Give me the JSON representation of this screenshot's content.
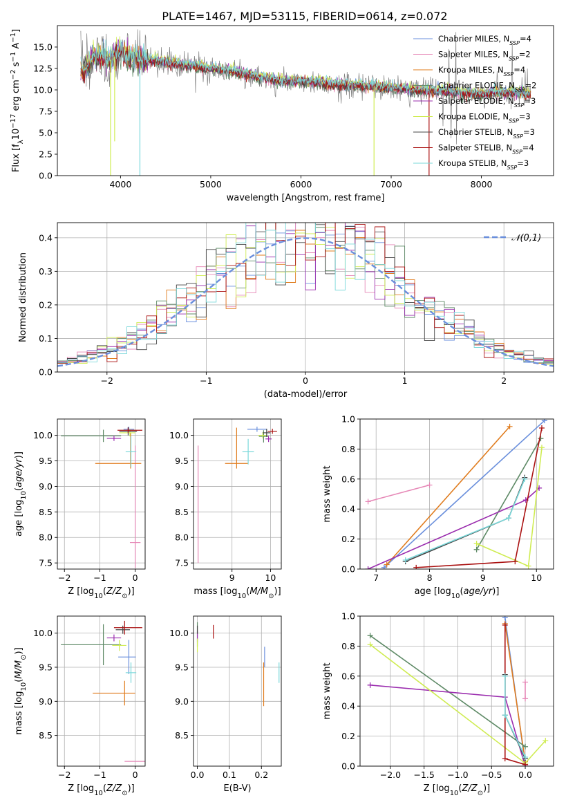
{
  "title": "PLATE=1467, MJD=53115, FIBERID=0614, z=0.072",
  "colors": {
    "chabrier_miles": "#6a8fdc",
    "salpeter_miles": "#e688b7",
    "kroupa_miles": "#e07c1e",
    "chabrier_elodie": "#5e8a66",
    "salpeter_elodie": "#9a2cae",
    "kroupa_elodie": "#cfec52",
    "chabrier_stelib": "#444444",
    "salpeter_stelib": "#aa1111",
    "kroupa_stelib": "#7ad8da",
    "normal": "#6a8fdc"
  },
  "chart_data": [
    {
      "id": "spectrum",
      "type": "line",
      "xlabel": "wavelength [Angstrom, rest frame]",
      "ylabel": "Flux [f_λ 10^-17 erg cm^-2 s^-1 A^-1]",
      "xlim": [
        3300,
        8800
      ],
      "ylim": [
        0,
        17.5
      ],
      "xticks": [
        4000,
        5000,
        6000,
        7000,
        8000
      ],
      "yticks": [
        0.0,
        2.5,
        5.0,
        7.5,
        10.0,
        12.5,
        15.0
      ],
      "grid": false,
      "legend_position": "top-right",
      "observed_data": {
        "x": [
          3500,
          3600,
          3700,
          3800,
          3900,
          4000,
          4100,
          4200,
          4400,
          4600,
          4800,
          5000,
          5200,
          5400,
          5600,
          5800,
          6000,
          6200,
          6400,
          6600,
          6800,
          7000,
          7200,
          7400,
          7600,
          7800,
          8000,
          8200,
          8400,
          8600,
          8800
        ],
        "y": [
          12.5,
          12.0,
          14.0,
          13.8,
          13.5,
          14.5,
          13.8,
          13.5,
          13.4,
          13.0,
          12.8,
          12.5,
          12.2,
          11.8,
          11.4,
          11.0,
          11.0,
          10.8,
          10.6,
          10.5,
          10.4,
          10.2,
          10.0,
          9.9,
          9.8,
          9.6,
          9.5,
          9.7,
          9.6,
          9.4,
          9.3
        ]
      },
      "series": [
        {
          "name": "Chabrier MILES, N_SSP=4",
          "label_main": "Chabrier MILES, N",
          "label_n": "4",
          "color_key": "chabrier_miles",
          "offset": 0.15
        },
        {
          "name": "Salpeter MILES, N_SSP=2",
          "label_main": "Salpeter MILES, N",
          "label_n": "2",
          "color_key": "salpeter_miles",
          "offset": -0.1
        },
        {
          "name": "Kroupa MILES, N_SSP=4",
          "label_main": "Kroupa MILES, N",
          "label_n": "4",
          "color_key": "kroupa_miles",
          "offset": 0.05
        },
        {
          "name": "Chabrier ELODIE, N_SSP=2",
          "label_main": "Chabrier ELODIE, N",
          "label_n": "2",
          "color_key": "chabrier_elodie",
          "offset": -0.2
        },
        {
          "name": "Salpeter ELODIE, N_SSP=3",
          "label_main": "Salpeter ELODIE, N",
          "label_n": "3",
          "color_key": "salpeter_elodie",
          "offset": 0.1
        },
        {
          "name": "Kroupa ELODIE, N_SSP=3",
          "label_main": "Kroupa ELODIE, N",
          "label_n": "3",
          "color_key": "kroupa_elodie",
          "offset": 0.3
        },
        {
          "name": "Chabrier STELIB, N_SSP=3",
          "label_main": "Chabrier STELIB, N",
          "label_n": "3",
          "color_key": "chabrier_stelib",
          "offset": -0.05
        },
        {
          "name": "Salpeter STELIB, N_SSP=4",
          "label_main": "Salpeter STELIB, N",
          "label_n": "4",
          "color_key": "salpeter_stelib",
          "offset": 0.0
        },
        {
          "name": "Kroupa STELIB, N_SSP=3",
          "label_main": "Kroupa STELIB, N",
          "label_n": "3",
          "color_key": "kroupa_stelib",
          "offset": 0.2
        }
      ]
    },
    {
      "id": "residuals",
      "type": "histogram",
      "xlabel": "(data-model)/error",
      "ylabel": "Normed distribution",
      "xlim": [
        -2.5,
        2.5
      ],
      "ylim": [
        0,
        0.445
      ],
      "xticks": [
        -2,
        -1,
        0,
        1,
        2
      ],
      "yticks": [
        0.0,
        0.1,
        0.2,
        0.3,
        0.4
      ],
      "grid": true,
      "bin_width": 0.1,
      "legend": "𝒩(0,1)",
      "legend_position": "top-right",
      "normal_curve": {
        "mean": 0,
        "sigma": 1
      }
    },
    {
      "id": "age_vs_Z",
      "type": "errorbar",
      "xlabel": "Z [log10(Z/Z⊙)]",
      "ylabel": "age  [log10(age/yr)]",
      "xlim": [
        -2.2,
        0.28
      ],
      "ylim": [
        7.38,
        10.32
      ],
      "xticks": [
        -2,
        -1,
        0
      ],
      "yticks": [
        7.5,
        8.0,
        8.5,
        9.0,
        9.5,
        10.0
      ],
      "grid": true,
      "points": [
        {
          "color_key": "chabrier_miles",
          "x": -0.18,
          "y": 10.12,
          "xerr": [
            0.15,
            0.15
          ],
          "yerr": [
            0.05,
            0.05
          ]
        },
        {
          "color_key": "salpeter_miles",
          "x": 0.0,
          "y": 7.9,
          "xerr": [
            0.15,
            0.15
          ],
          "yerr": [
            0.5,
            1.9
          ]
        },
        {
          "color_key": "kroupa_miles",
          "x": -0.13,
          "y": 9.45,
          "xerr": [
            1.0,
            0.3
          ],
          "yerr": [
            0.1,
            0.6
          ]
        },
        {
          "color_key": "chabrier_elodie",
          "x": -0.9,
          "y": 9.99,
          "xerr": [
            1.2,
            0.5
          ],
          "yerr": [
            0.12,
            0.12
          ]
        },
        {
          "color_key": "salpeter_elodie",
          "x": -0.6,
          "y": 9.94,
          "xerr": [
            0.2,
            0.2
          ],
          "yerr": [
            0.05,
            0.05
          ]
        },
        {
          "color_key": "kroupa_elodie",
          "x": -0.15,
          "y": 10.05,
          "xerr": [
            0.3,
            0.15
          ],
          "yerr": [
            0.07,
            0.07
          ]
        },
        {
          "color_key": "chabrier_stelib",
          "x": -0.2,
          "y": 10.08,
          "xerr": [
            0.25,
            0.25
          ],
          "yerr": [
            0.08,
            0.08
          ]
        },
        {
          "color_key": "salpeter_stelib",
          "x": -0.2,
          "y": 10.1,
          "xerr": [
            0.3,
            0.4
          ],
          "yerr": [
            0.05,
            0.05
          ]
        },
        {
          "color_key": "kroupa_stelib",
          "x": -0.12,
          "y": 9.68,
          "xerr": [
            0.15,
            0.15
          ],
          "yerr": [
            0.3,
            0.3
          ]
        }
      ]
    },
    {
      "id": "age_vs_mass",
      "type": "errorbar",
      "xlabel": "mass [log10(M/M⊙)]",
      "ylabel": "",
      "xlim": [
        8.0,
        10.28
      ],
      "ylim": [
        7.38,
        10.32
      ],
      "xticks": [
        9,
        10
      ],
      "yticks": [
        7.5,
        8.0,
        8.5,
        9.0,
        9.5,
        10.0
      ],
      "grid": true,
      "points": [
        {
          "color_key": "chabrier_miles",
          "x": 9.65,
          "y": 10.12,
          "xerr": [
            0.25,
            0.25
          ],
          "yerr": [
            0.05,
            0.05
          ]
        },
        {
          "color_key": "salpeter_miles",
          "x": 8.12,
          "y": 8.65,
          "xerr": [
            0.0,
            0.0
          ],
          "yerr": [
            1.15,
            1.15
          ]
        },
        {
          "color_key": "kroupa_miles",
          "x": 9.12,
          "y": 9.45,
          "xerr": [
            0.3,
            0.3
          ],
          "yerr": [
            0.1,
            0.7
          ]
        },
        {
          "color_key": "chabrier_elodie",
          "x": 9.82,
          "y": 9.98,
          "xerr": [
            0.12,
            0.12
          ],
          "yerr": [
            0.12,
            0.12
          ]
        },
        {
          "color_key": "salpeter_elodie",
          "x": 9.95,
          "y": 9.93,
          "xerr": [
            0.08,
            0.08
          ],
          "yerr": [
            0.06,
            0.06
          ]
        },
        {
          "color_key": "kroupa_elodie",
          "x": 9.8,
          "y": 10.0,
          "xerr": [
            0.12,
            0.12
          ],
          "yerr": [
            0.06,
            0.06
          ]
        },
        {
          "color_key": "chabrier_stelib",
          "x": 9.9,
          "y": 10.05,
          "xerr": [
            0.1,
            0.1
          ],
          "yerr": [
            0.08,
            0.08
          ]
        },
        {
          "color_key": "salpeter_stelib",
          "x": 10.05,
          "y": 10.08,
          "xerr": [
            0.12,
            0.12
          ],
          "yerr": [
            0.05,
            0.05
          ]
        },
        {
          "color_key": "kroupa_stelib",
          "x": 9.42,
          "y": 9.68,
          "xerr": [
            0.15,
            0.15
          ],
          "yerr": [
            0.25,
            0.25
          ]
        }
      ]
    },
    {
      "id": "weight_vs_age",
      "type": "line",
      "xlabel": "age  [log10(age/yr)]",
      "ylabel": "mass weight",
      "xlim": [
        6.7,
        10.32
      ],
      "ylim": [
        0,
        1.0
      ],
      "xticks": [
        7,
        8,
        9,
        10
      ],
      "yticks": [
        0.0,
        0.2,
        0.4,
        0.6,
        0.8,
        1.0
      ],
      "grid": true,
      "series": [
        {
          "color_key": "chabrier_miles",
          "x": [
            7.15,
            10.15
          ],
          "y": [
            0.01,
            0.99
          ]
        },
        {
          "color_key": "salpeter_miles",
          "x": [
            6.85,
            8.0
          ],
          "y": [
            0.45,
            0.56
          ]
        },
        {
          "color_key": "kroupa_miles",
          "x": [
            7.2,
            9.5
          ],
          "y": [
            0.03,
            0.95
          ]
        },
        {
          "color_key": "chabrier_elodie",
          "x": [
            8.88,
            10.08
          ],
          "y": [
            0.13,
            0.87
          ]
        },
        {
          "color_key": "salpeter_elodie",
          "x": [
            6.85,
            9.8,
            10.05
          ],
          "y": [
            0.0,
            0.46,
            0.54
          ]
        },
        {
          "color_key": "kroupa_elodie",
          "x": [
            8.88,
            9.85,
            10.1
          ],
          "y": [
            0.17,
            0.02,
            0.81
          ]
        },
        {
          "color_key": "chabrier_stelib",
          "x": [
            7.55,
            9.48,
            9.78
          ],
          "y": [
            0.05,
            0.34,
            0.61
          ]
        },
        {
          "color_key": "salpeter_stelib",
          "x": [
            7.75,
            9.6,
            10.1
          ],
          "y": [
            0.01,
            0.05,
            0.94
          ]
        },
        {
          "color_key": "kroupa_stelib",
          "x": [
            7.55,
            9.48,
            9.78
          ],
          "y": [
            0.06,
            0.34,
            0.6
          ]
        }
      ]
    },
    {
      "id": "mass_vs_Z",
      "type": "errorbar",
      "xlabel": "Z [log10(Z/Z⊙)]",
      "ylabel": "mass [log10(M/M⊙)]",
      "xlim": [
        -2.2,
        0.28
      ],
      "ylim": [
        8.05,
        10.25
      ],
      "xticks": [
        -2,
        -1,
        0
      ],
      "yticks": [
        8.5,
        9.0,
        9.5,
        10.0
      ],
      "grid": true,
      "points": [
        {
          "color_key": "chabrier_miles",
          "x": -0.18,
          "y": 9.65,
          "xerr": [
            0.3,
            0.2
          ],
          "yerr": [
            0.25,
            0.25
          ]
        },
        {
          "color_key": "salpeter_miles",
          "x": 0.0,
          "y": 8.12,
          "xerr": [
            0.3,
            0.3
          ],
          "yerr": [
            0.0,
            0.0
          ]
        },
        {
          "color_key": "kroupa_miles",
          "x": -0.3,
          "y": 9.12,
          "xerr": [
            0.9,
            0.3
          ],
          "yerr": [
            0.18,
            0.18
          ]
        },
        {
          "color_key": "chabrier_elodie",
          "x": -0.9,
          "y": 9.83,
          "xerr": [
            1.2,
            0.5
          ],
          "yerr": [
            0.3,
            0.3
          ]
        },
        {
          "color_key": "salpeter_elodie",
          "x": -0.6,
          "y": 9.93,
          "xerr": [
            0.2,
            0.2
          ],
          "yerr": [
            0.05,
            0.05
          ]
        },
        {
          "color_key": "kroupa_elodie",
          "x": -0.45,
          "y": 9.82,
          "xerr": [
            0.2,
            0.2
          ],
          "yerr": [
            0.08,
            0.08
          ]
        },
        {
          "color_key": "chabrier_stelib",
          "x": -0.35,
          "y": 10.05,
          "xerr": [
            0.2,
            0.2
          ],
          "yerr": [
            0.06,
            0.06
          ]
        },
        {
          "color_key": "salpeter_stelib",
          "x": -0.3,
          "y": 10.08,
          "xerr": [
            0.3,
            0.5
          ],
          "yerr": [
            0.1,
            0.1
          ]
        },
        {
          "color_key": "kroupa_stelib",
          "x": -0.12,
          "y": 9.42,
          "xerr": [
            0.15,
            0.15
          ],
          "yerr": [
            0.15,
            0.15
          ]
        }
      ]
    },
    {
      "id": "mass_vs_ebv",
      "type": "errorbar",
      "xlabel": "E(B-V)",
      "ylabel": "",
      "xlim": [
        -0.012,
        0.262
      ],
      "ylim": [
        8.05,
        10.25
      ],
      "xticks": [
        0.0,
        0.1,
        0.2
      ],
      "tick_labels": [
        "0.0",
        "0.1",
        "0.2"
      ],
      "yticks": [
        8.5,
        9.0,
        9.5,
        10.0
      ],
      "grid": true,
      "points": [
        {
          "color_key": "chabrier_miles",
          "x": 0.21,
          "y": 9.65,
          "xerr": [
            0.0,
            0.0
          ],
          "yerr": [
            0.15,
            0.15
          ]
        },
        {
          "color_key": "kroupa_miles",
          "x": 0.207,
          "y": 9.25,
          "xerr": [
            0.0,
            0.0
          ],
          "yerr": [
            0.32,
            0.32
          ]
        },
        {
          "color_key": "chabrier_elodie",
          "x": 0.0,
          "y": 9.98,
          "xerr": [
            0.0,
            0.0
          ],
          "yerr": [
            0.18,
            0.18
          ]
        },
        {
          "color_key": "salpeter_elodie",
          "x": 0.0,
          "y": 9.95,
          "xerr": [
            0.0,
            0.0
          ],
          "yerr": [
            0.08,
            0.08
          ]
        },
        {
          "color_key": "kroupa_elodie",
          "x": 0.0,
          "y": 9.82,
          "xerr": [
            0.0,
            0.0
          ],
          "yerr": [
            0.1,
            0.1
          ]
        },
        {
          "color_key": "chabrier_stelib",
          "x": 0.0,
          "y": 10.05,
          "xerr": [
            0.0,
            0.0
          ],
          "yerr": [
            0.06,
            0.06
          ]
        },
        {
          "color_key": "salpeter_stelib",
          "x": 0.05,
          "y": 10.02,
          "xerr": [
            0.0,
            0.0
          ],
          "yerr": [
            0.1,
            0.1
          ]
        },
        {
          "color_key": "kroupa_stelib",
          "x": 0.255,
          "y": 9.42,
          "xerr": [
            0.0,
            0.0
          ],
          "yerr": [
            0.15,
            0.15
          ]
        }
      ]
    },
    {
      "id": "weight_vs_Z",
      "type": "line",
      "xlabel": "Z [log10(Z/Z⊙)]",
      "ylabel": "mass weight",
      "xlim": [
        -2.45,
        0.42
      ],
      "ylim": [
        0,
        1.0
      ],
      "xticks": [
        -2.0,
        -1.5,
        -1.0,
        -0.5,
        0.0
      ],
      "yticks": [
        0.0,
        0.2,
        0.4,
        0.6,
        0.8,
        1.0
      ],
      "grid": true,
      "series": [
        {
          "color_key": "chabrier_miles",
          "x": [
            -0.3,
            0.0
          ],
          "y": [
            0.99,
            0.01
          ]
        },
        {
          "color_key": "salpeter_miles",
          "x": [
            0.0,
            0.0
          ],
          "y": [
            0.45,
            0.56
          ]
        },
        {
          "color_key": "kroupa_miles",
          "x": [
            -0.3,
            0.0
          ],
          "y": [
            0.95,
            0.03
          ]
        },
        {
          "color_key": "chabrier_elodie",
          "x": [
            -2.3,
            0.0
          ],
          "y": [
            0.87,
            0.13
          ]
        },
        {
          "color_key": "salpeter_elodie",
          "x": [
            -2.3,
            -0.3,
            0.0
          ],
          "y": [
            0.54,
            0.46,
            0.0
          ]
        },
        {
          "color_key": "kroupa_elodie",
          "x": [
            -2.3,
            0.0,
            0.3
          ],
          "y": [
            0.81,
            0.02,
            0.17
          ]
        },
        {
          "color_key": "chabrier_stelib",
          "x": [
            -0.3,
            -0.3,
            0.0
          ],
          "y": [
            0.61,
            0.34,
            0.05
          ]
        },
        {
          "color_key": "salpeter_stelib",
          "x": [
            -0.3,
            -0.3,
            0.0
          ],
          "y": [
            0.94,
            0.05,
            0.01
          ]
        },
        {
          "color_key": "kroupa_stelib",
          "x": [
            -0.3,
            -0.3,
            0.0
          ],
          "y": [
            0.6,
            0.34,
            0.06
          ]
        }
      ]
    }
  ]
}
